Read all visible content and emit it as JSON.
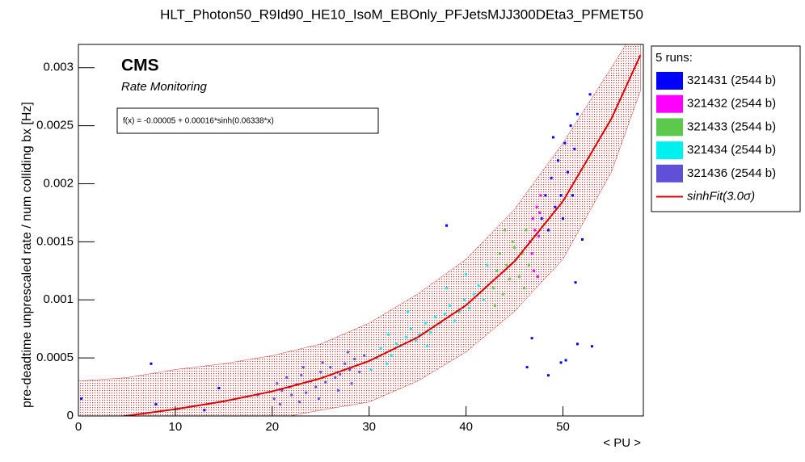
{
  "chart_data": {
    "type": "scatter",
    "title": "HLT_Photon50_R9Id90_HE10_IsoM_EBOnly_PFJetsMJJ300DEta3_PFMET50",
    "x_label": "< PU >",
    "y_label": "pre-deadtime unprescaled rate / num colliding bx [Hz]",
    "logo": "CMS",
    "subtitle": "Rate Monitoring",
    "fit_label": "f(x) = -0.00005 + 0.00016*sinh(0.06338*x)",
    "legend_title": "5 runs:",
    "xlim": [
      0,
      58.3
    ],
    "ylim": [
      0,
      0.0032
    ],
    "xticks": [
      0,
      10,
      20,
      30,
      40,
      50
    ],
    "yticks": [
      0,
      0.0005,
      0.001,
      0.0015,
      0.002,
      0.0025,
      0.003
    ],
    "series": [
      {
        "name": "321431 (2544 b)",
        "color": "#0000ff",
        "x": [
          47.8,
          48.2,
          48.5,
          48.8,
          49.2,
          49.5,
          49.8,
          50.2,
          50.5,
          50.8,
          51.2,
          51.5,
          49,
          50,
          51,
          52.8,
          52,
          51.3,
          51.5,
          53,
          50.3,
          49.8,
          48.5,
          46.8,
          46.3,
          38,
          7.5,
          0.3,
          13,
          14.5,
          8
        ],
        "values": [
          0.0017,
          0.0019,
          0.0016,
          0.00205,
          0.0018,
          0.0022,
          0.0019,
          0.00235,
          0.0021,
          0.0025,
          0.0023,
          0.0026,
          0.0024,
          0.0017,
          0.0019,
          0.00277,
          0.00152,
          0.00115,
          0.00062,
          0.0006,
          0.00048,
          0.00046,
          0.00035,
          0.00067,
          0.00042,
          0.00164,
          0.00045,
          0.00015,
          5e-05,
          0.00024,
          0.0001
        ]
      },
      {
        "name": "321432 (2544 b)",
        "color": "#ff00ff",
        "x": [
          46.6,
          46.9,
          47.1,
          47.3,
          47.5,
          47.7,
          47,
          47.4,
          46.8,
          47.6
        ],
        "values": [
          0.0015,
          0.0017,
          0.0016,
          0.0018,
          0.00155,
          0.0019,
          0.00125,
          0.0012,
          0.0014,
          0.00175
        ]
      },
      {
        "name": "321433 (2544 b)",
        "color": "#5cc84c",
        "x": [
          42.8,
          43.2,
          43.5,
          43.8,
          44.2,
          44.5,
          44.8,
          45.2,
          45.5,
          45.8,
          46.2,
          46.5,
          44,
          43,
          45,
          46
        ],
        "values": [
          0.0011,
          0.00125,
          0.0014,
          0.00105,
          0.0013,
          0.00118,
          0.0015,
          0.00135,
          0.0012,
          0.0014,
          0.0016,
          0.0013,
          0.0016,
          0.00095,
          0.00145,
          0.0011
        ]
      },
      {
        "name": "321434 (2544 b)",
        "color": "#00f0f0",
        "x": [
          30.2,
          30.8,
          31.2,
          31.8,
          32.3,
          32.8,
          33.2,
          33.8,
          34.3,
          34.8,
          35.2,
          35.8,
          36.3,
          36.8,
          37.3,
          37.8,
          38.3,
          38.8,
          39.3,
          39.8,
          40.3,
          40.8,
          41.3,
          41.8,
          42.2,
          34,
          36,
          38,
          32,
          40
        ],
        "values": [
          0.0004,
          0.0005,
          0.00058,
          0.00045,
          0.00052,
          0.00062,
          0.0006,
          0.00068,
          0.00075,
          0.00065,
          0.0007,
          0.0008,
          0.00072,
          0.00085,
          0.0008,
          0.00088,
          0.00095,
          0.00082,
          0.0009,
          0.001,
          0.00093,
          0.00105,
          0.00112,
          0.001,
          0.0013,
          0.0009,
          0.0006,
          0.0011,
          0.0007,
          0.00122
        ]
      },
      {
        "name": "321436 (2544 b)",
        "color": "#6050d8",
        "x": [
          18.5,
          20.2,
          20.5,
          21,
          21.5,
          22,
          22.5,
          23,
          23.5,
          24,
          24.5,
          25,
          25.5,
          26,
          26.5,
          27,
          27.5,
          28,
          28.5,
          29,
          29.5,
          20.8,
          22.8,
          24.8,
          26.8,
          28.2,
          23.2,
          25.2,
          21.8,
          27.8
        ],
        "values": [
          0.00018,
          0.00015,
          0.00028,
          0.00022,
          0.00033,
          0.00018,
          0.00027,
          0.00035,
          0.0002,
          0.0003,
          0.00025,
          0.00038,
          0.00029,
          0.00042,
          0.00033,
          0.00036,
          0.00045,
          0.0004,
          0.00049,
          0.00038,
          0.00052,
          0.0001,
          0.00012,
          0.00015,
          0.00022,
          0.00028,
          0.00042,
          0.00046,
          0.00025,
          0.00055
        ]
      }
    ],
    "fit": {
      "name": "sinhFit(3.0σ)",
      "color": "#dd0000",
      "x": [
        0,
        5,
        10,
        15,
        20,
        25,
        30,
        35,
        40,
        45,
        50,
        55,
        58
      ],
      "values": [
        -5e-05,
        1.6e-06,
        5.83e-05,
        0.0001261,
        0.0002116,
        0.0003238,
        0.0004736,
        0.0006767,
        0.0009532,
        0.0013313,
        0.001849,
        0.0025596,
        0.0031084
      ],
      "band_upper": [
        0.0003,
        0.00033,
        0.0004,
        0.00045,
        0.00052,
        0.00062,
        0.0008,
        0.00105,
        0.00135,
        0.00178,
        0.00235,
        0.003,
        0.0034
      ],
      "band_lower": [
        -0.0003,
        -0.00025,
        -0.0002,
        -0.0001,
        -3e-05,
        5e-05,
        0.00012,
        0.0003,
        0.00055,
        0.0009,
        0.00135,
        0.0021,
        0.0028
      ]
    }
  }
}
